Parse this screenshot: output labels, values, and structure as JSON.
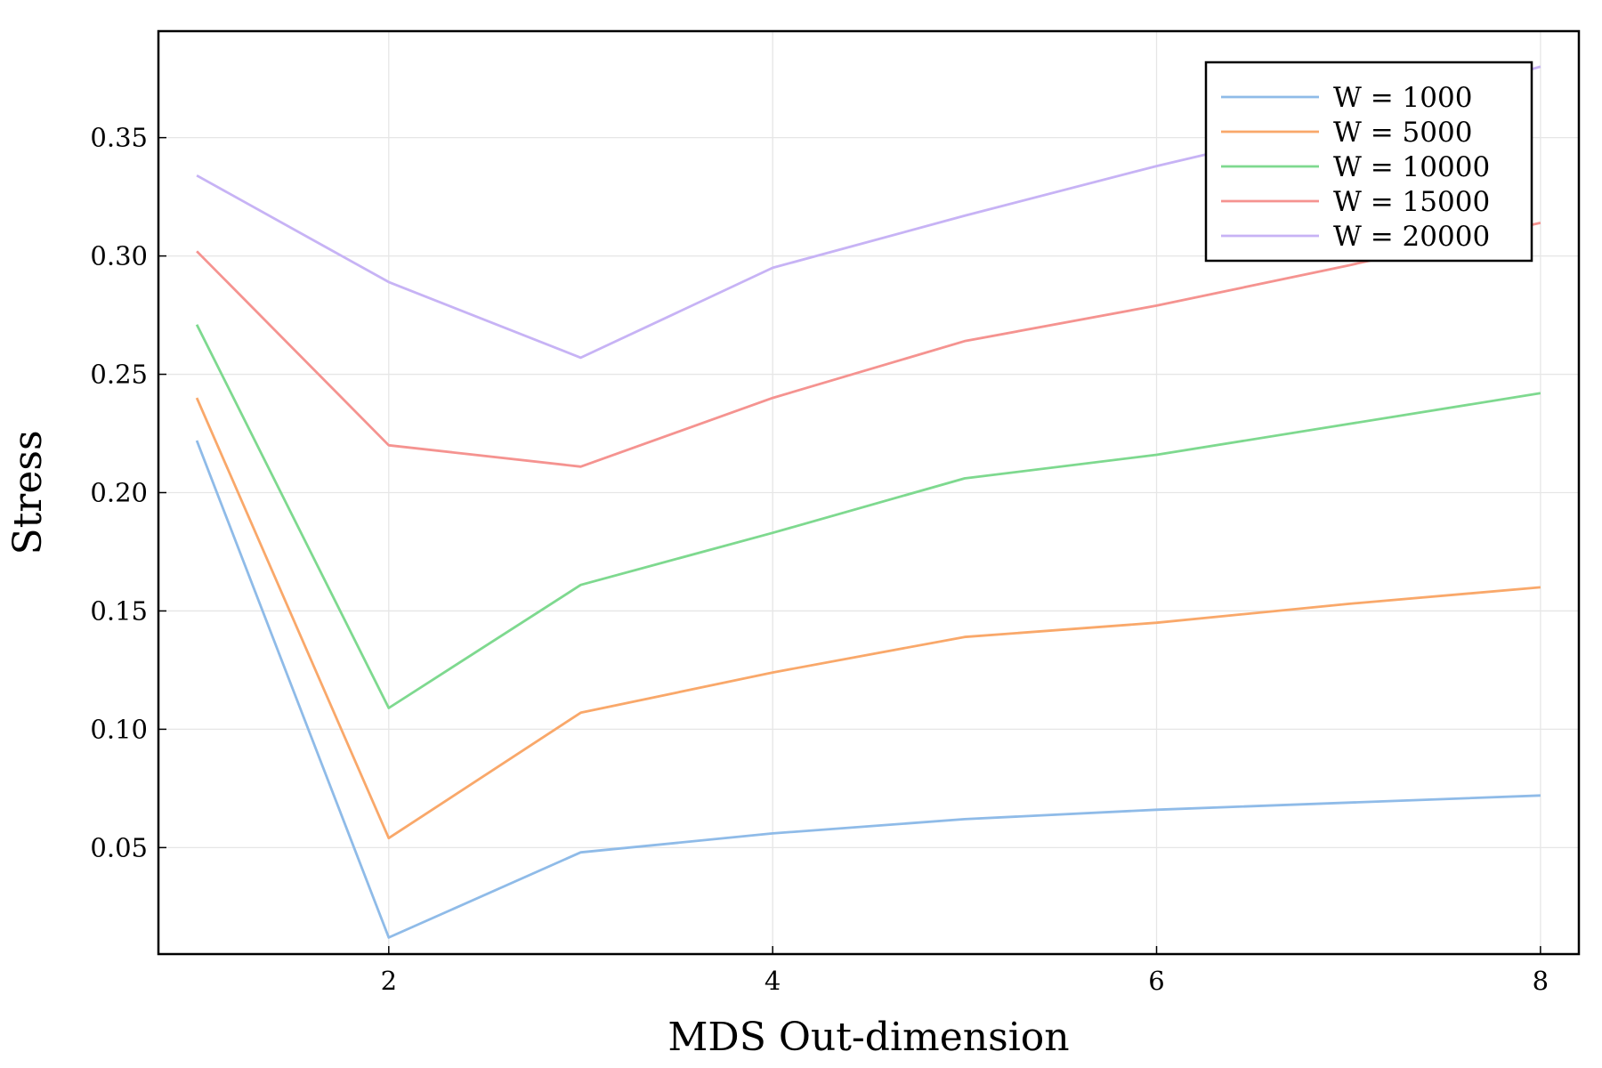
{
  "chart_data": {
    "type": "line",
    "title": "",
    "xlabel": "MDS Out-dimension",
    "ylabel": "Stress",
    "xlim": [
      0.8,
      8.2
    ],
    "ylim": [
      0.005,
      0.395
    ],
    "xticks": [
      2,
      4,
      6,
      8
    ],
    "yticks": [
      0.05,
      0.1,
      0.15,
      0.2,
      0.25,
      0.3,
      0.35
    ],
    "ytick_labels": [
      "0.05",
      "0.10",
      "0.15",
      "0.20",
      "0.25",
      "0.30",
      "0.35"
    ],
    "grid": true,
    "legend_position": "top-right",
    "x": [
      1,
      2,
      3,
      4,
      5,
      6,
      7,
      8
    ],
    "series": [
      {
        "name": "W = 1000",
        "color": "#8fbbe8",
        "values": [
          0.222,
          0.012,
          0.048,
          0.056,
          0.062,
          0.066,
          0.069,
          0.072
        ]
      },
      {
        "name": "W = 5000",
        "color": "#f9a86a",
        "values": [
          0.24,
          0.054,
          0.107,
          0.124,
          0.139,
          0.145,
          0.153,
          0.16
        ]
      },
      {
        "name": "W = 10000",
        "color": "#7ed98f",
        "values": [
          0.271,
          0.109,
          0.161,
          0.183,
          0.206,
          0.216,
          0.229,
          0.242
        ]
      },
      {
        "name": "W = 15000",
        "color": "#f59390",
        "values": [
          0.302,
          0.22,
          0.211,
          0.24,
          0.264,
          0.279,
          0.296,
          0.314
        ]
      },
      {
        "name": "W = 20000",
        "color": "#c7b3f5",
        "values": [
          0.334,
          0.289,
          0.257,
          0.295,
          0.317,
          0.338,
          0.357,
          0.38
        ]
      }
    ]
  }
}
